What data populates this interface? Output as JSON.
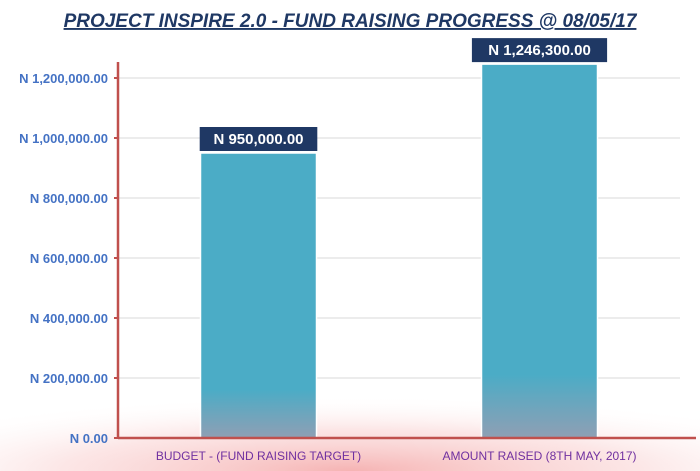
{
  "chart_data": {
    "type": "bar",
    "title": "PROJECT INSPIRE 2.0 - FUND RAISING PROGRESS @ 08/05/17",
    "categories": [
      "BUDGET - (FUND RAISING TARGET)",
      "AMOUNT RAISED (8TH MAY, 2017)"
    ],
    "values": [
      950000,
      1246300
    ],
    "data_labels": [
      "N 950,000.00",
      "N 1,246,300.00"
    ],
    "ylim": [
      0,
      1200000
    ],
    "yticks": [
      0,
      200000,
      400000,
      600000,
      800000,
      1000000,
      1200000
    ],
    "ytick_labels": [
      "N 0.00",
      "N 200,000.00",
      "N 400,000.00",
      "N 600,000.00",
      "N 800,000.00",
      "N 1,000,000.00",
      "N 1,200,000.00"
    ],
    "xlabel": "",
    "ylabel": "",
    "grid": true,
    "colors": {
      "bar": "#4bacc6",
      "axis": "#c0504d",
      "grid": "#d9d9d9",
      "title": "#1f3864",
      "tick_label": "#4472c4",
      "category_label": "#7030a0",
      "data_label_bg": "#1f3864",
      "data_label_text": "#ffffff"
    }
  }
}
